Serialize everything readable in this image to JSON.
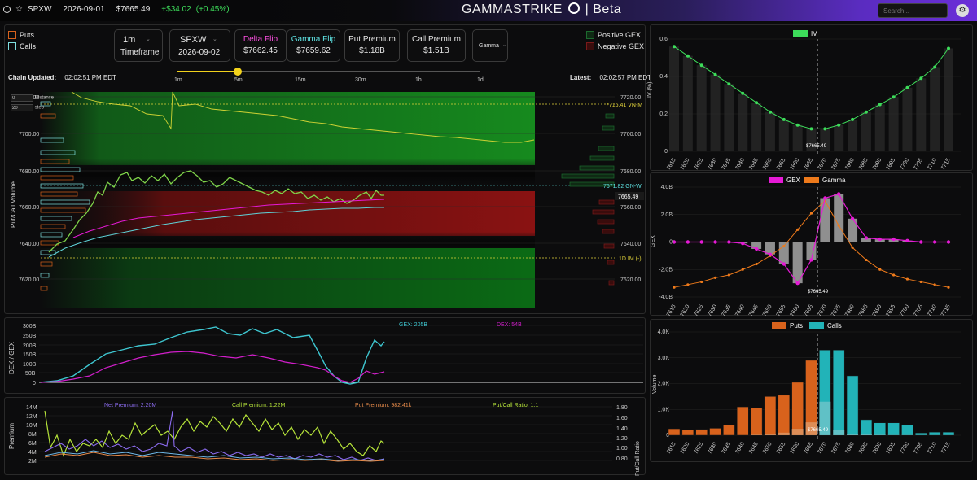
{
  "topbar": {
    "symbol": "SPXW",
    "date": "2026-09-01",
    "price": "$7665.49",
    "change": "+$34.02",
    "change_pct": "(+0.45%)",
    "brand": "GAMMASTRIKE",
    "brand_suffix": "| Beta",
    "search_placeholder": "Search..."
  },
  "legend": {
    "puts": "Puts",
    "calls": "Calls",
    "positive_gex": "Positive GEX",
    "negative_gex": "Negative GEX"
  },
  "controls": {
    "timeframe_value": "1m",
    "timeframe_label": "Timeframe",
    "ticker_value": "SPXW",
    "expiry": "2026-09-02",
    "delta_flip_label": "Delta Flip",
    "delta_flip_value": "$7662.45",
    "gamma_flip_label": "Gamma Flip",
    "gamma_flip_value": "$7659.62",
    "put_premium_label": "Put Premium",
    "put_premium_value": "$1.18B",
    "call_premium_label": "Call Premium",
    "call_premium_value": "$1.51B",
    "mode_value": "Gamma"
  },
  "status": {
    "chain_updated_label": "Chain Updated:",
    "chain_updated_time": "02:02:51 PM EDT",
    "latest_label": "Latest:",
    "latest_time": "02:02:57 PM EDT"
  },
  "slider": {
    "ticks": [
      "1m",
      "5m",
      "15m",
      "30m",
      "1h",
      "1d"
    ],
    "selected": "5m"
  },
  "heatmap": {
    "ylabel": "Put/Call Volume",
    "distance_value": "0",
    "distance_label": "Distance",
    "step_value": "20",
    "step_label": "step",
    "y_ticks": [
      "7720.00",
      "7700.00",
      "7680.00",
      "7660.00",
      "7640.00",
      "7620.00"
    ],
    "vn_label": "7716.41 VN-M",
    "gn_label": "7671.82 GN-W",
    "price_label": "7665.49",
    "im_label": "1D IM (-)"
  },
  "dex_gex": {
    "ylabel": "DEX / GEX",
    "gex_label": "GEX: 205B",
    "dex_label": "DEX: 54B",
    "y_ticks": [
      "300B",
      "250B",
      "200B",
      "150B",
      "100B",
      "50B",
      "0"
    ]
  },
  "premium": {
    "ylabel": "Premium",
    "y2label": "Put/Call Ratio",
    "net_label": "Net Premium: 2.20M",
    "call_label": "Call Premium: 1.22M",
    "put_label": "Put Premium: 982.41k",
    "ratio_label": "Put/Call Ratio: 1.1",
    "y_ticks": [
      "14M",
      "12M",
      "10M",
      "8M",
      "6M",
      "4M",
      "2M"
    ],
    "y2_ticks": [
      "1.80",
      "1.60",
      "1.40",
      "1.20",
      "1.00",
      "0.80"
    ]
  },
  "strikes": [
    "7615",
    "7620",
    "7625",
    "7630",
    "7635",
    "7640",
    "7645",
    "7650",
    "7655",
    "7660",
    "7665",
    "7670",
    "7675",
    "7680",
    "7685",
    "7690",
    "7695",
    "7700",
    "7705",
    "7710",
    "7715"
  ],
  "spot_label": "$7665.49",
  "chart_data": [
    {
      "type": "line",
      "legend": [
        "IV"
      ],
      "ylabel": "IV (%)",
      "categories": [
        "7615",
        "7620",
        "7625",
        "7630",
        "7635",
        "7640",
        "7645",
        "7650",
        "7655",
        "7660",
        "7665",
        "7670",
        "7675",
        "7680",
        "7685",
        "7690",
        "7695",
        "7700",
        "7705",
        "7710",
        "7715"
      ],
      "y_ticks": [
        "0.6",
        "0.4",
        "0.2",
        "0"
      ],
      "ylim": [
        0,
        0.6
      ],
      "series": [
        {
          "name": "IV",
          "values": [
            0.56,
            0.51,
            0.46,
            0.41,
            0.36,
            0.31,
            0.26,
            0.21,
            0.17,
            0.14,
            0.12,
            0.12,
            0.14,
            0.17,
            0.21,
            0.25,
            0.29,
            0.34,
            0.39,
            0.45,
            0.55
          ]
        }
      ],
      "color": "#3ddc5a"
    },
    {
      "type": "bar",
      "legend": [
        "GEX",
        "Gamma"
      ],
      "ylabel": "GEX",
      "categories": [
        "7615",
        "7620",
        "7625",
        "7630",
        "7635",
        "7640",
        "7645",
        "7650",
        "7655",
        "7660",
        "7665",
        "7670",
        "7675",
        "7680",
        "7685",
        "7690",
        "7695",
        "7700",
        "7705",
        "7710",
        "7715"
      ],
      "y_ticks": [
        "4.0B",
        "2.0B",
        "0",
        "-2.0B",
        "-4.0B"
      ],
      "ylim": [
        -4,
        4
      ],
      "series": [
        {
          "name": "GEX",
          "values": [
            0,
            0,
            0,
            0,
            0,
            -0.1,
            -0.5,
            -0.9,
            -1.6,
            -3.0,
            -1.3,
            3.2,
            3.5,
            1.7,
            0.3,
            0.2,
            0.2,
            0.1,
            0,
            0,
            0
          ]
        },
        {
          "name": "Gamma",
          "values": [
            -3.3,
            -3.1,
            -2.9,
            -2.6,
            -2.4,
            -2.0,
            -1.6,
            -1.0,
            -0.3,
            0.9,
            2.1,
            3.0,
            1.2,
            -0.4,
            -1.3,
            -2.0,
            -2.4,
            -2.7,
            -2.9,
            -3.1,
            -3.3
          ]
        }
      ],
      "colors": {
        "gex_bar": "#8f8f8f",
        "gex_line": "#e61ad6",
        "gamma": "#ee7a1b"
      }
    },
    {
      "type": "bar",
      "legend": [
        "Puts",
        "Calls"
      ],
      "ylabel": "Volume",
      "categories": [
        "7615",
        "7620",
        "7625",
        "7630",
        "7635",
        "7640",
        "7645",
        "7650",
        "7655",
        "7660",
        "7665",
        "7670",
        "7675",
        "7680",
        "7685",
        "7690",
        "7695",
        "7700",
        "7705",
        "7710",
        "7715"
      ],
      "y_ticks": [
        "4.0K",
        "3.0K",
        "2.0K",
        "1.0K",
        "0"
      ],
      "ylim": [
        0,
        4000
      ],
      "series": [
        {
          "name": "Puts",
          "values": [
            250,
            200,
            230,
            270,
            400,
            1100,
            1050,
            1500,
            1550,
            2050,
            2900,
            1300,
            200,
            50,
            30,
            20,
            10,
            10,
            5,
            5,
            5
          ]
        },
        {
          "name": "Calls",
          "values": [
            0,
            0,
            0,
            0,
            0,
            0,
            20,
            50,
            100,
            250,
            500,
            3300,
            3300,
            2300,
            600,
            480,
            480,
            400,
            90,
            120,
            120
          ]
        }
      ],
      "colors": {
        "puts": "#d8621c",
        "calls": "#22b3b8"
      }
    }
  ]
}
